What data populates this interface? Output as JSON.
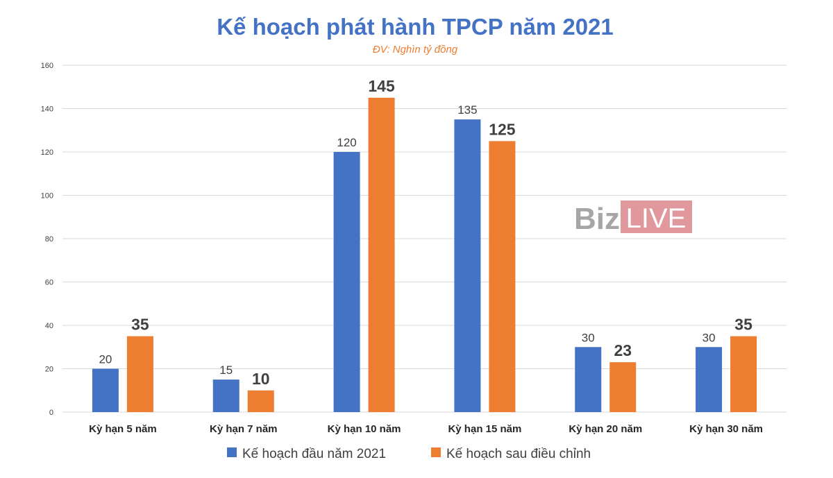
{
  "chart_data": {
    "type": "bar",
    "title": "Kế hoạch phát hành TPCP năm 2021",
    "subtitle": "ĐV: Nghìn tỷ đồng",
    "xlabel": "",
    "ylabel": "",
    "categories": [
      "Kỳ hạn 5 năm",
      "Kỳ hạn 7 năm",
      "Kỳ hạn 10 năm",
      "Kỳ hạn 15 năm",
      "Kỳ hạn 20 năm",
      "Kỳ hạn 30 năm"
    ],
    "series": [
      {
        "name": "Kế hoạch đầu năm 2021",
        "color": "#4472c4",
        "values": [
          20,
          15,
          120,
          135,
          30,
          30
        ]
      },
      {
        "name": "Kế hoạch sau điều chỉnh",
        "color": "#ed7d31",
        "values": [
          35,
          10,
          145,
          125,
          23,
          35
        ]
      }
    ],
    "ylim": [
      0,
      160
    ],
    "yticks": [
      0,
      20,
      40,
      60,
      80,
      100,
      120,
      140,
      160
    ],
    "grid": true,
    "legend": "bottom"
  },
  "watermark": {
    "part1": "Biz",
    "part2": "LIVE",
    "bg_color": "#e0989d"
  }
}
